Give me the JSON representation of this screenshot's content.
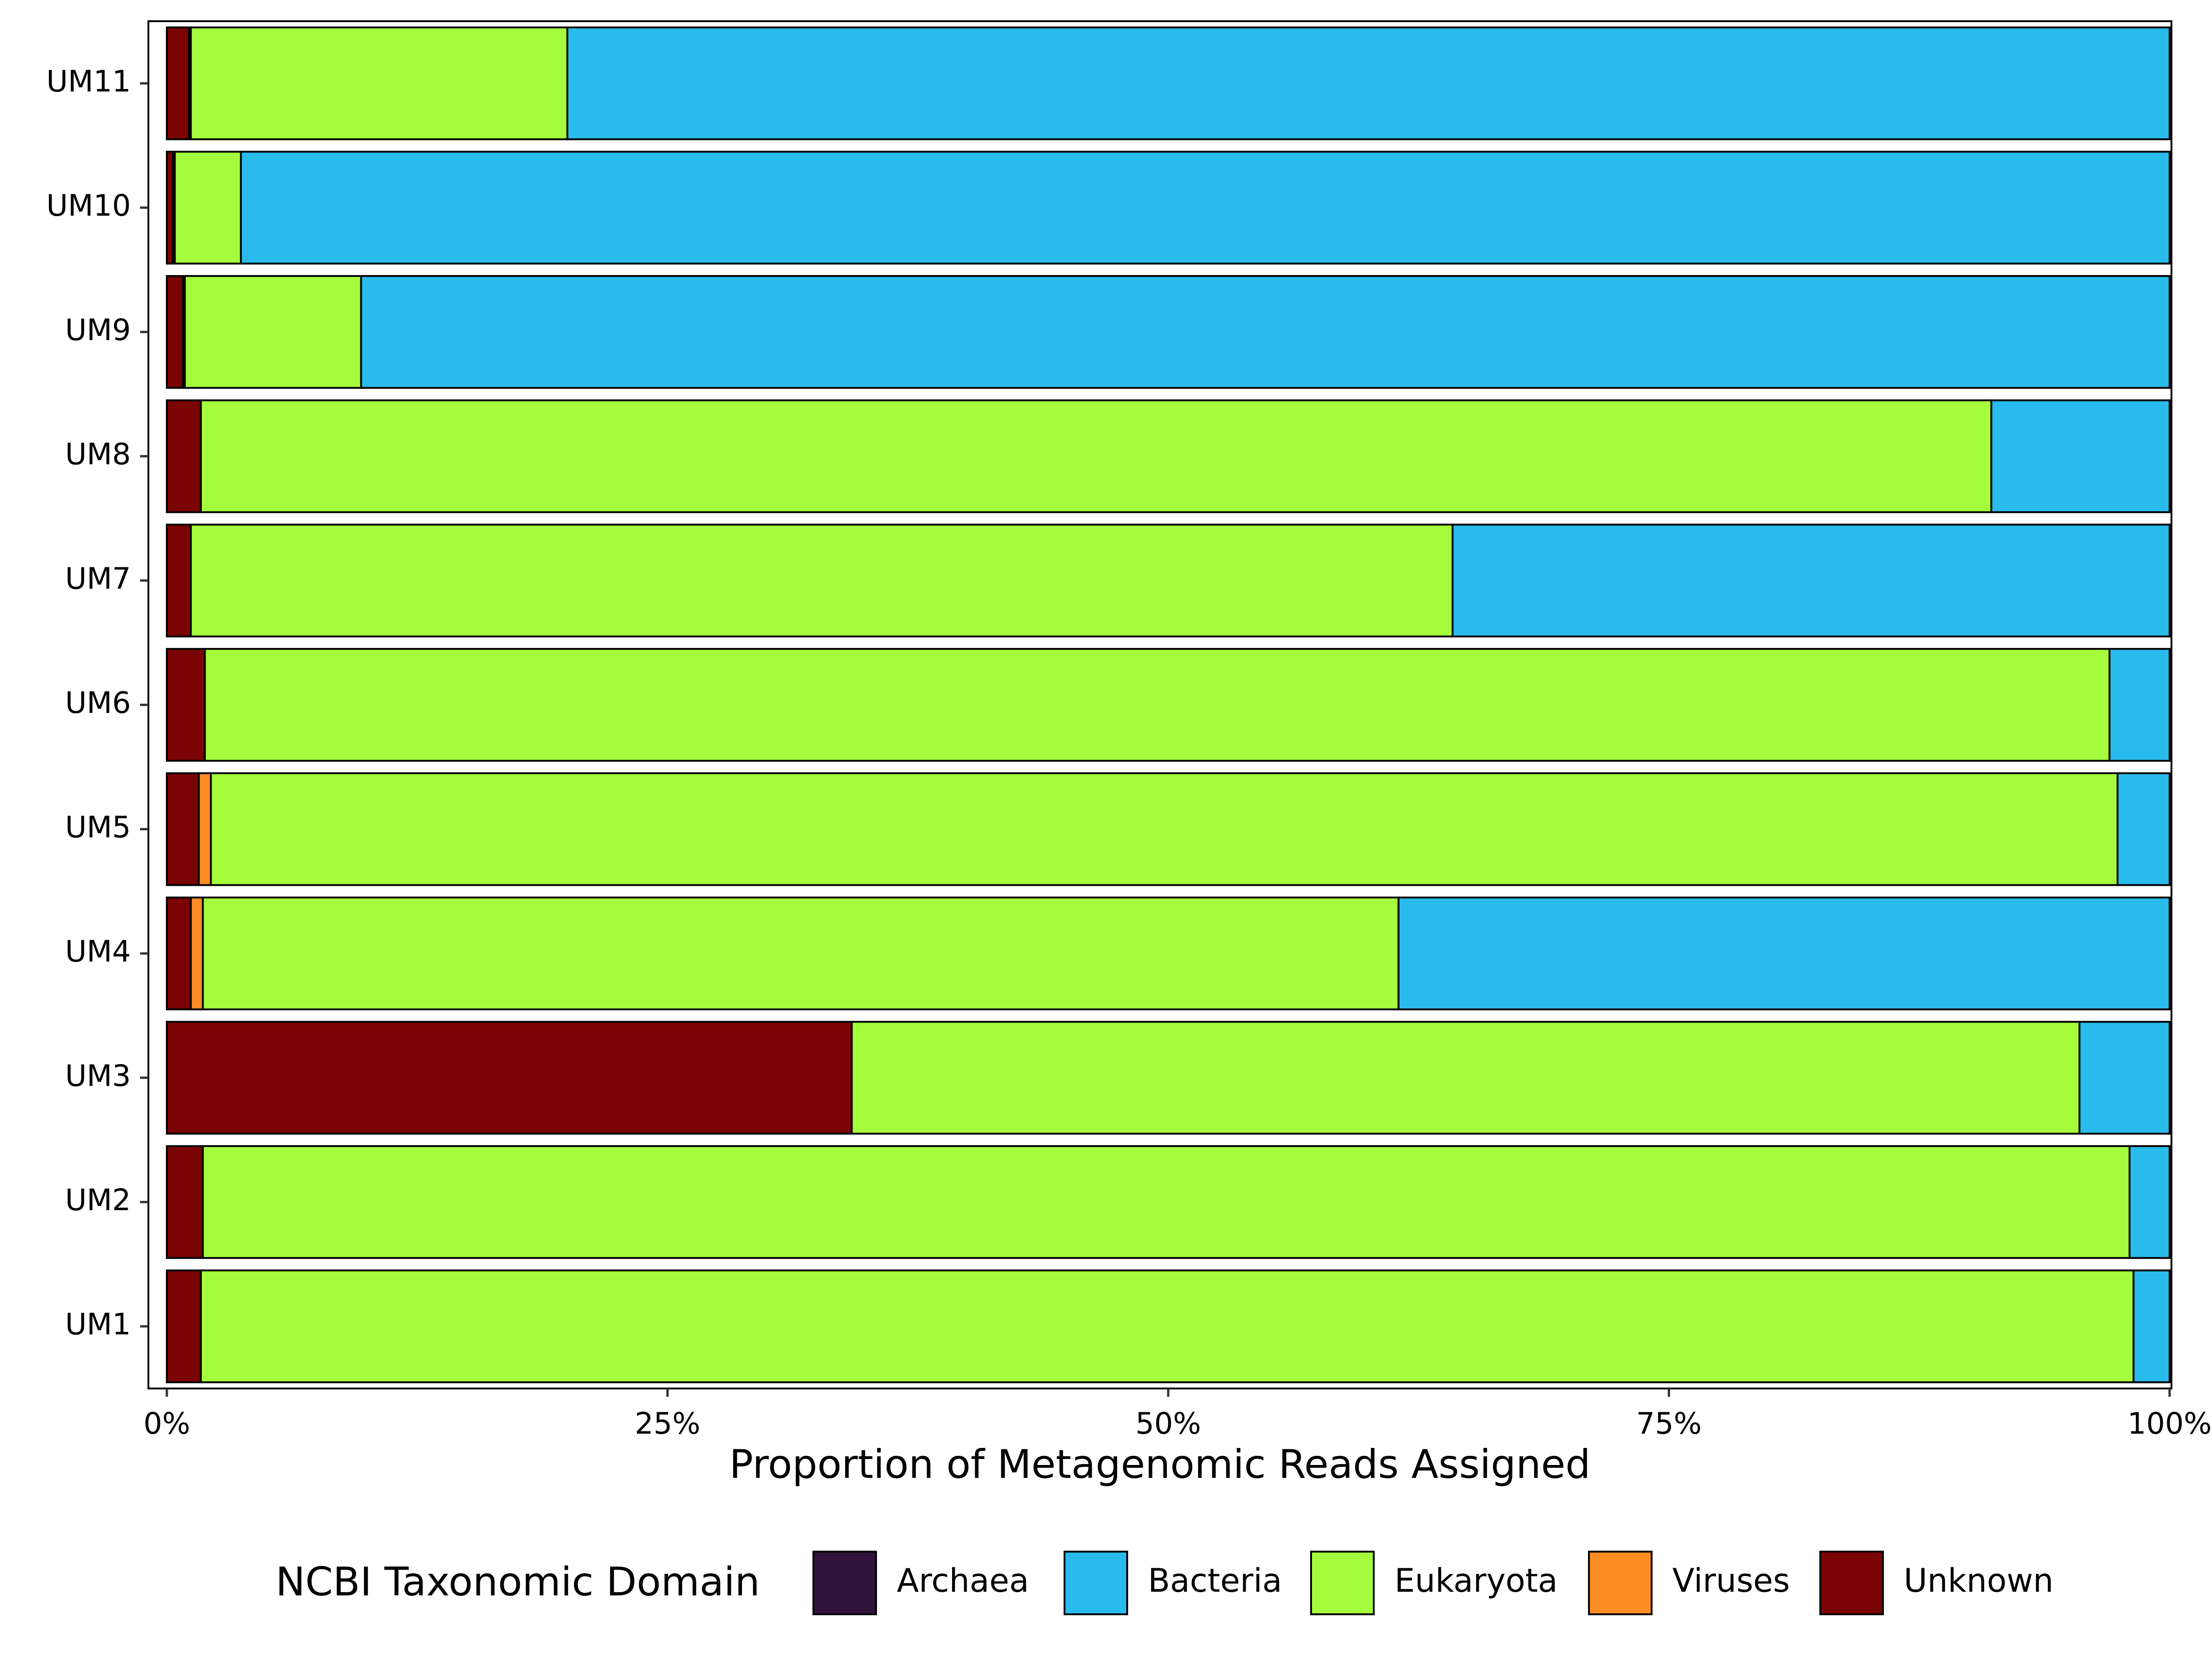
{
  "chart_data": {
    "type": "bar",
    "orientation": "horizontal",
    "stacked": true,
    "title": "",
    "xlabel": "Proportion of Metagenomic Reads Assigned",
    "ylabel": "",
    "xlim": [
      0,
      1
    ],
    "x_ticks": [
      0,
      0.25,
      0.5,
      0.75,
      1.0
    ],
    "x_tick_labels": [
      "0%",
      "25%",
      "50%",
      "75%",
      "100%"
    ],
    "grid": false,
    "legend_position": "bottom",
    "legend_title": "NCBI Taxonomic Domain",
    "categories": [
      "UM1",
      "UM2",
      "UM3",
      "UM4",
      "UM5",
      "UM6",
      "UM7",
      "UM8",
      "UM9",
      "UM10",
      "UM11"
    ],
    "series": [
      {
        "name": "Unknown",
        "color": "#7a0403",
        "values": [
          0.017,
          0.018,
          0.342,
          0.012,
          0.016,
          0.019,
          0.012,
          0.017,
          0.008,
          0.003,
          0.011
        ]
      },
      {
        "name": "Archaea",
        "color": "#30123b",
        "values": [
          0.0,
          0.0,
          0.0,
          0.0,
          0.0,
          0.0,
          0.0,
          0.0,
          0.001,
          0.001,
          0.001
        ]
      },
      {
        "name": "Viruses",
        "color": "#fe8c25",
        "values": [
          0.0,
          0.0,
          0.0,
          0.006,
          0.006,
          0.0,
          0.0,
          0.0,
          0.0,
          0.0,
          0.0
        ]
      },
      {
        "name": "Eukaryota",
        "color": "#a4fc3c",
        "values": [
          0.965,
          0.962,
          0.613,
          0.597,
          0.952,
          0.951,
          0.63,
          0.894,
          0.088,
          0.033,
          0.188
        ]
      },
      {
        "name": "Bacteria",
        "color": "#29bbec",
        "values": [
          0.018,
          0.02,
          0.045,
          0.385,
          0.026,
          0.03,
          0.358,
          0.089,
          0.903,
          0.963,
          0.8
        ]
      }
    ],
    "legend_order": [
      "Archaea",
      "Bacteria",
      "Eukaryota",
      "Viruses",
      "Unknown"
    ]
  }
}
